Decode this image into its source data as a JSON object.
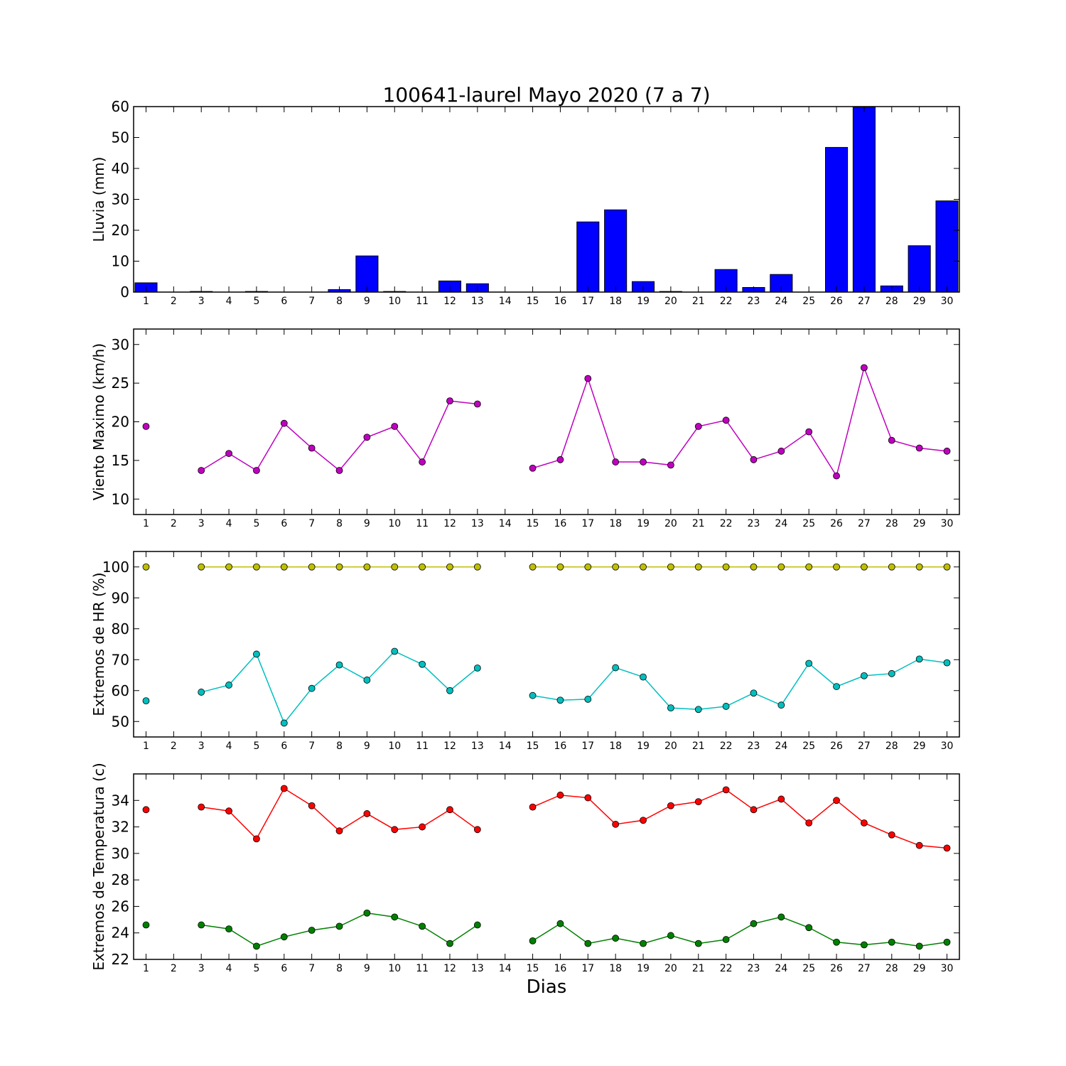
{
  "figure": {
    "title": "100641-laurel Mayo 2020  (7 a 7)",
    "xlabel": "Dias"
  },
  "chart_data": [
    {
      "type": "bar",
      "ylabel": "Lluvia (mm)",
      "ylim": [
        0,
        60
      ],
      "yticks": [
        0,
        10,
        20,
        30,
        40,
        50,
        60
      ],
      "categories": [
        1,
        2,
        3,
        4,
        5,
        6,
        7,
        8,
        9,
        10,
        11,
        12,
        13,
        14,
        15,
        16,
        17,
        18,
        19,
        20,
        21,
        22,
        23,
        24,
        25,
        26,
        27,
        28,
        29,
        30
      ],
      "series": [
        {
          "color": "#0000ff",
          "values": [
            3,
            0,
            0.2,
            0,
            0.2,
            0,
            0,
            0.8,
            11.7,
            0.2,
            0,
            3.6,
            2.7,
            0,
            0,
            0,
            22.7,
            26.6,
            3.4,
            0.2,
            0,
            7.3,
            1.5,
            5.7,
            0,
            46.8,
            59.9,
            2,
            15,
            29.5
          ]
        }
      ]
    },
    {
      "type": "line",
      "ylabel": "Viento Maximo (km/h)",
      "ylim": [
        8,
        32
      ],
      "yticks": [
        10,
        15,
        20,
        25,
        30
      ],
      "x": [
        1,
        2,
        3,
        4,
        5,
        6,
        7,
        8,
        9,
        10,
        11,
        12,
        13,
        14,
        15,
        16,
        17,
        18,
        19,
        20,
        21,
        22,
        23,
        24,
        25,
        26,
        27,
        28,
        29,
        30
      ],
      "series": [
        {
          "color": "#bf00bf",
          "values": [
            19.4,
            null,
            13.7,
            15.9,
            13.7,
            19.8,
            16.6,
            13.7,
            18.0,
            19.4,
            14.8,
            22.7,
            22.3,
            null,
            14.0,
            15.1,
            25.6,
            14.8,
            14.8,
            14.4,
            19.4,
            20.2,
            15.1,
            16.2,
            18.7,
            13.0,
            27.0,
            17.6,
            16.6,
            16.2
          ]
        }
      ]
    },
    {
      "type": "line",
      "ylabel": "Extremos de HR (%)",
      "ylim": [
        45,
        105
      ],
      "yticks": [
        50,
        60,
        70,
        80,
        90,
        100
      ],
      "x": [
        1,
        2,
        3,
        4,
        5,
        6,
        7,
        8,
        9,
        10,
        11,
        12,
        13,
        14,
        15,
        16,
        17,
        18,
        19,
        20,
        21,
        22,
        23,
        24,
        25,
        26,
        27,
        28,
        29,
        30
      ],
      "series": [
        {
          "color": "#bfbf00",
          "values": [
            100,
            null,
            100,
            100,
            100,
            100,
            100,
            100,
            100,
            100,
            100,
            100,
            100,
            null,
            100,
            100,
            100,
            100,
            100,
            100,
            100,
            100,
            100,
            100,
            100,
            100,
            100,
            100,
            100,
            100
          ]
        },
        {
          "color": "#00bfbf",
          "values": [
            56.7,
            null,
            59.5,
            61.8,
            71.8,
            49.5,
            60.7,
            68.3,
            63.4,
            72.7,
            68.5,
            60.0,
            67.3,
            null,
            58.4,
            56.9,
            57.2,
            67.4,
            64.4,
            54.4,
            53.9,
            54.9,
            59.2,
            55.3,
            68.8,
            61.3,
            64.8,
            65.5,
            70.2,
            69.0
          ]
        }
      ]
    },
    {
      "type": "line",
      "ylabel": "Extremos de Temperatura (c)",
      "ylim": [
        22,
        36
      ],
      "yticks": [
        22,
        24,
        26,
        28,
        30,
        32,
        34
      ],
      "x": [
        1,
        2,
        3,
        4,
        5,
        6,
        7,
        8,
        9,
        10,
        11,
        12,
        13,
        14,
        15,
        16,
        17,
        18,
        19,
        20,
        21,
        22,
        23,
        24,
        25,
        26,
        27,
        28,
        29,
        30
      ],
      "series": [
        {
          "color": "#ff0000",
          "values": [
            33.3,
            null,
            33.5,
            33.2,
            31.1,
            34.9,
            33.6,
            31.7,
            33.0,
            31.8,
            32.0,
            33.3,
            31.8,
            null,
            33.5,
            34.4,
            34.2,
            32.2,
            32.5,
            33.6,
            33.9,
            34.8,
            33.3,
            34.1,
            32.3,
            34.0,
            32.3,
            31.4,
            30.6,
            30.4
          ]
        },
        {
          "color": "#008000",
          "values": [
            24.6,
            null,
            24.6,
            24.3,
            23.0,
            23.7,
            24.2,
            24.5,
            25.5,
            25.2,
            24.5,
            23.2,
            24.6,
            null,
            23.4,
            24.7,
            23.2,
            23.6,
            23.2,
            23.8,
            23.2,
            23.5,
            24.7,
            25.2,
            24.4,
            23.3,
            23.1,
            23.3,
            23.0,
            23.3
          ]
        }
      ]
    }
  ]
}
